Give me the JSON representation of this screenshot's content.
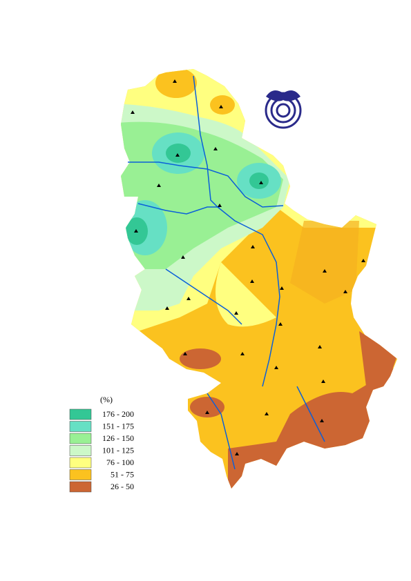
{
  "legend": {
    "title": "(%)",
    "items": [
      {
        "label": "176 - 200",
        "color": "#33c795"
      },
      {
        "label": "151 - 175",
        "color": "#66e0c4"
      },
      {
        "label": "126 - 150",
        "color": "#99f094"
      },
      {
        "label": "101 - 125",
        "color": "#ccf8c8"
      },
      {
        "label": "76 - 100",
        "color": "#ffff80"
      },
      {
        "label": "51 - 75",
        "color": "#fbc21f"
      },
      {
        "label": "26 - 50",
        "color": "#cc6633"
      }
    ]
  }
}
